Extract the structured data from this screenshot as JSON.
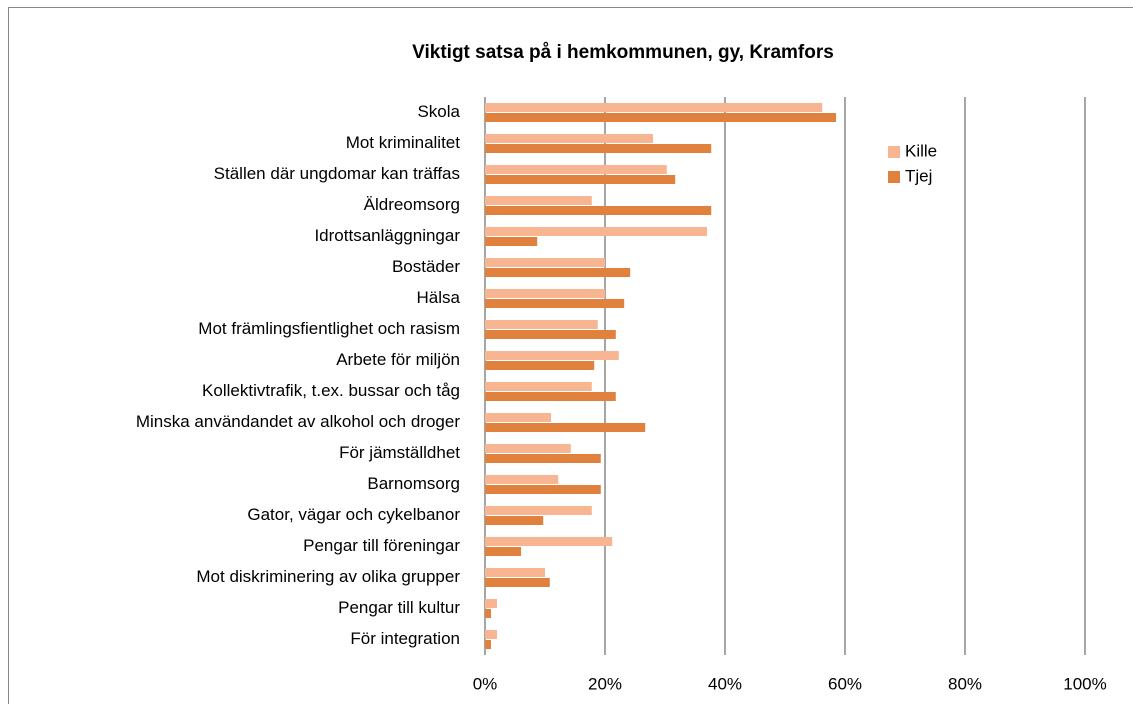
{
  "chart_data": {
    "type": "bar",
    "orientation": "horizontal",
    "title": "Viktigt satsa på i hemkommunen, gy, Kramfors",
    "categories": [
      "Skola",
      "Mot kriminalitet",
      "Ställen där ungdomar kan träffas",
      "Äldreomsorg",
      "Idrottsanläggningar",
      "Bostäder",
      "Hälsa",
      "Mot främlingsfientlighet och rasism",
      "Arbete för miljön",
      "Kollektivtrafik, t.ex. bussar och tåg",
      "Minska användandet av alkohol och droger",
      "För jämställdhet",
      "Barnomsorg",
      "Gator, vägar och cykelbanor",
      "Pengar till föreningar",
      "Mot diskriminering av olika grupper",
      "Pengar till kultur",
      "För integration"
    ],
    "series": [
      {
        "name": "Kille",
        "color": "#f8b592",
        "values": [
          56.2,
          28,
          30.3,
          17.8,
          37,
          20,
          20,
          18.8,
          22.3,
          17.8,
          11,
          14.3,
          12.2,
          17.8,
          21.2,
          10,
          2,
          2
        ]
      },
      {
        "name": "Tjej",
        "color": "#e0823e",
        "values": [
          58.5,
          37.7,
          31.7,
          37.7,
          8.7,
          24.2,
          23.2,
          21.8,
          18.2,
          21.8,
          26.7,
          19.3,
          19.3,
          9.7,
          6,
          10.8,
          1,
          1
        ]
      }
    ],
    "xlim": [
      0,
      100
    ],
    "xticks": [
      {
        "value": 0,
        "label": "0%"
      },
      {
        "value": 20,
        "label": "20%"
      },
      {
        "value": 40,
        "label": "40%"
      },
      {
        "value": 60,
        "label": "60%"
      },
      {
        "value": 80,
        "label": "80%"
      },
      {
        "value": 100,
        "label": "100%"
      }
    ],
    "grid": true,
    "legend": "upper right"
  }
}
